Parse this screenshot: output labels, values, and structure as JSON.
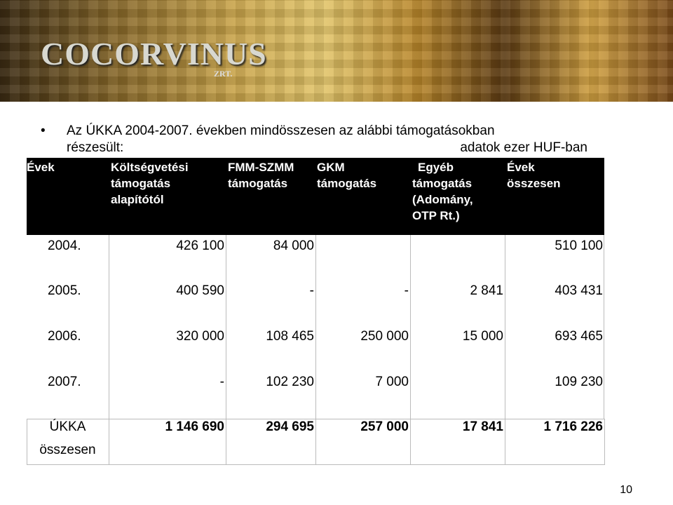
{
  "logo": {
    "name": "COCORVINUS",
    "suffix": "ZRT."
  },
  "bullet": {
    "line1": "Az ÚKKA 2004-2007. években mindösszesen az alábbi támogatásokban",
    "line2": "részesült:"
  },
  "unit_note": "adatok ezer HUF-ban",
  "table": {
    "header": [
      [
        "Évek"
      ],
      [
        "Költségvetési",
        "támogatás",
        "alapítótól"
      ],
      [
        "FMM-SZMM",
        "támogatás"
      ],
      [
        "GKM",
        "támogatás"
      ],
      [
        "Egyéb",
        "támogatás",
        "(Adomány,",
        "OTP Rt.)"
      ],
      [
        "Évek",
        "összesen"
      ]
    ],
    "rows": [
      [
        "2004.",
        "426 100",
        "84 000",
        null,
        null,
        "510 100"
      ],
      [
        "2005.",
        "400 590",
        "-",
        "-",
        "2 841",
        "403 431"
      ],
      [
        "2006.",
        "320 000",
        "108 465",
        "250 000",
        "15 000",
        "693 465"
      ],
      [
        "2007.",
        "-",
        "102 230",
        "7 000",
        null,
        "109 230"
      ]
    ],
    "total": [
      [
        "ÚKKA",
        "összesen"
      ],
      "1 146 690",
      "294 695",
      "257 000",
      "17 841",
      "1 716 226"
    ]
  },
  "page_number": "10"
}
